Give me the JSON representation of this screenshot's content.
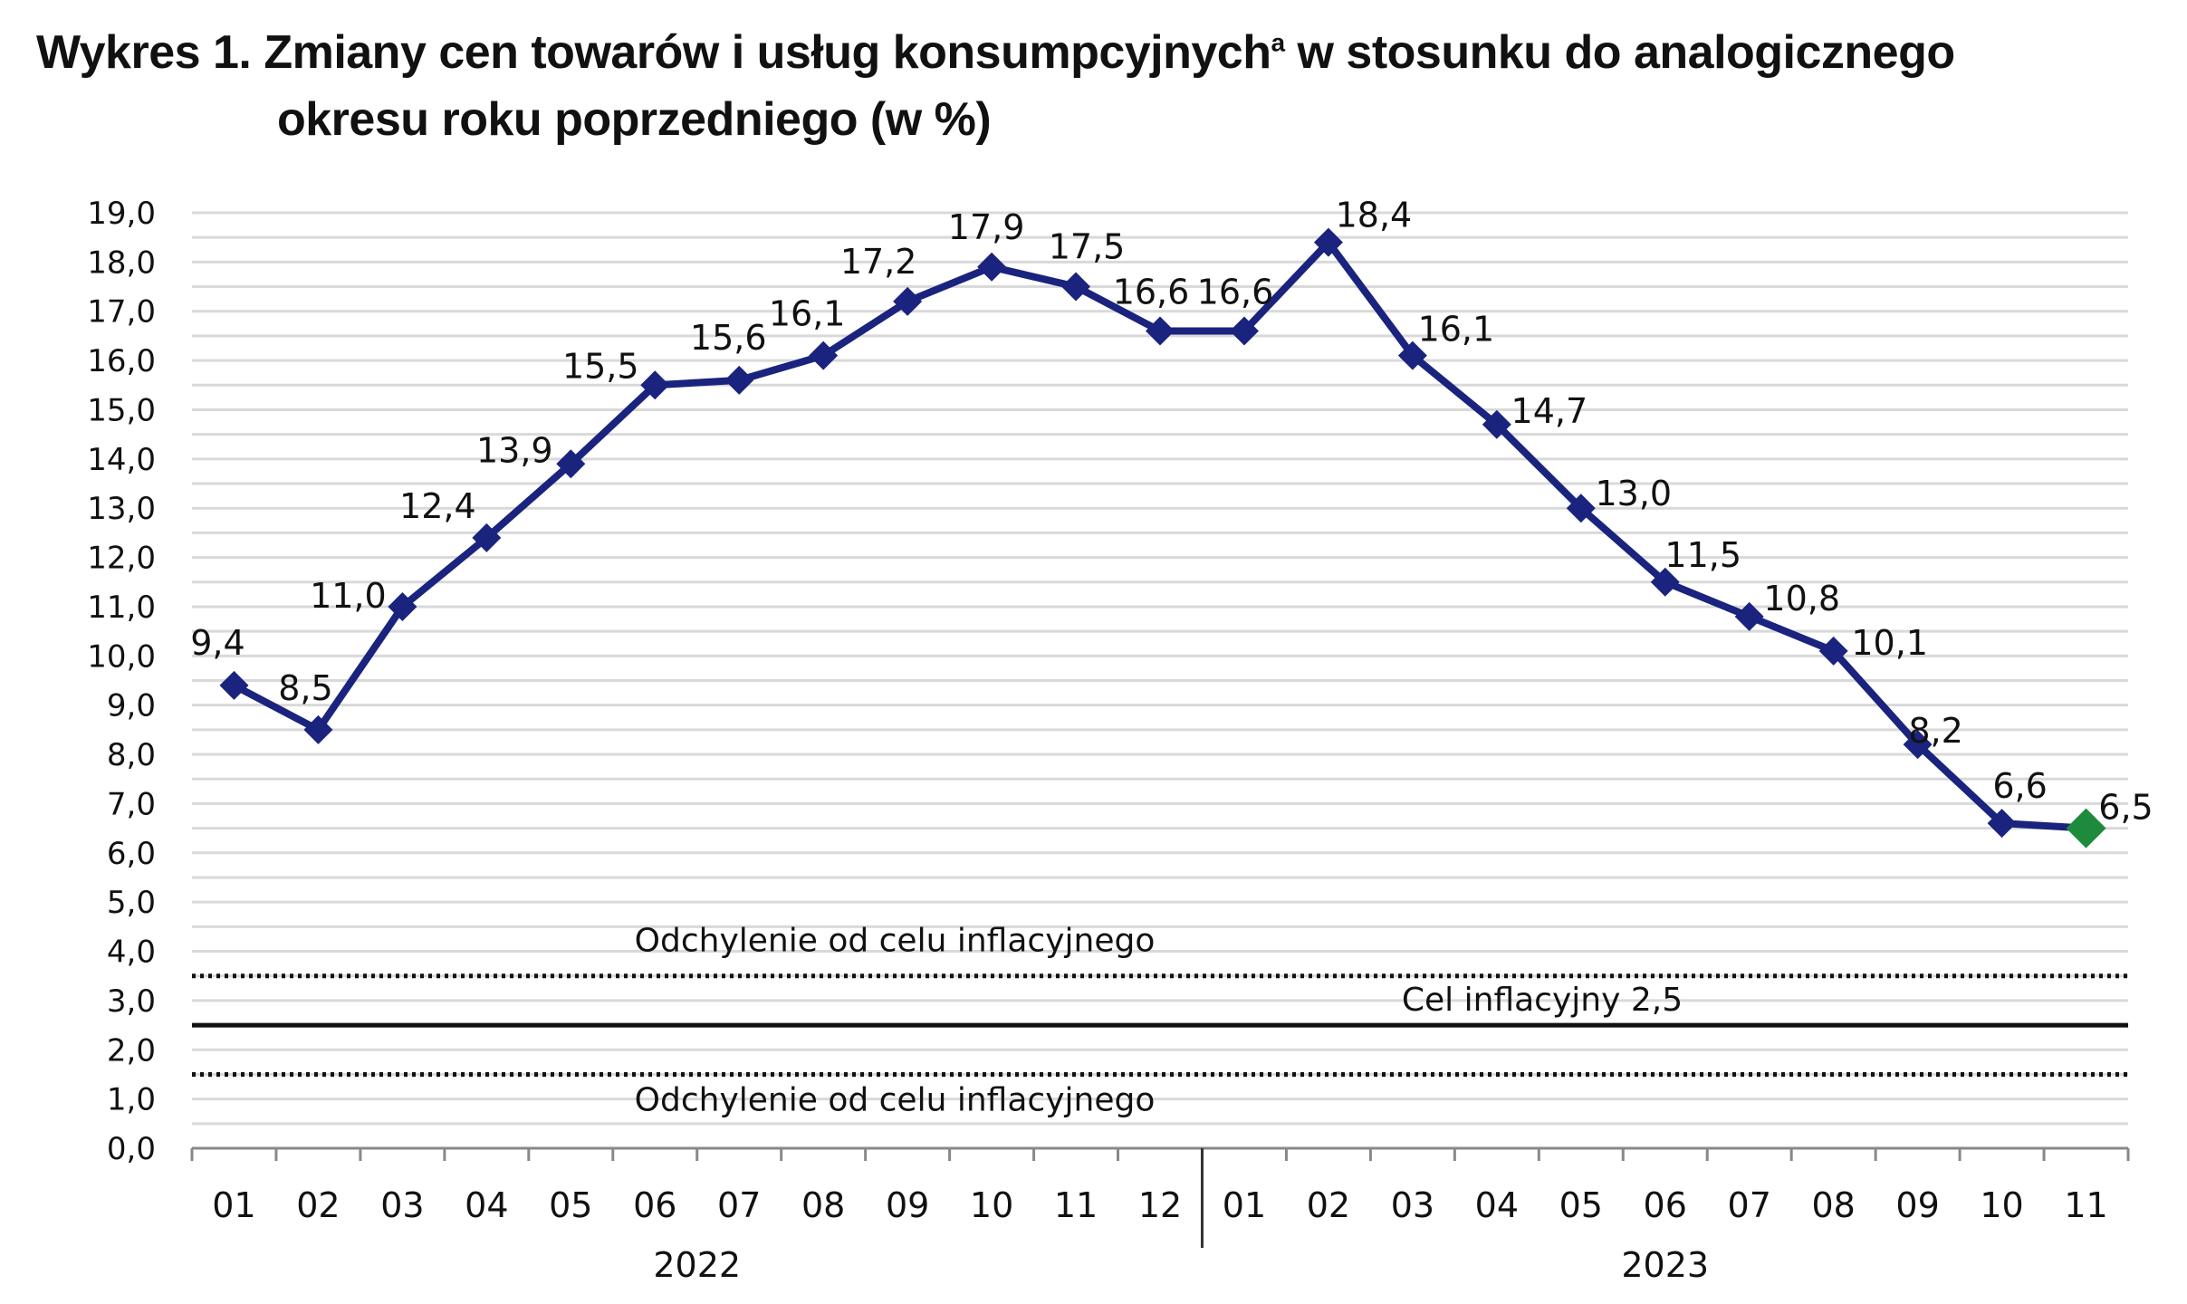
{
  "title": {
    "line1_main": "Wykres 1. Zmiany cen towarów i usług konsumpcyjnych",
    "line1_sup": "a",
    "line1_end": " w stosunku do analogicznego",
    "line2": "okresu roku poprzedniego (w %)"
  },
  "chart_data": {
    "type": "line",
    "title": "Wykres 1. Zmiany cen towarów i usług konsumpcyjnych w stosunku do analogicznego okresu roku poprzedniego (w %)",
    "categories": [
      "01",
      "02",
      "03",
      "04",
      "05",
      "06",
      "07",
      "08",
      "09",
      "10",
      "11",
      "12",
      "01",
      "02",
      "03",
      "04",
      "05",
      "06",
      "07",
      "08",
      "09",
      "10",
      "11"
    ],
    "year_groups": [
      {
        "label": "2022",
        "count": 12
      },
      {
        "label": "2023",
        "count": 11
      }
    ],
    "values": [
      9.4,
      8.5,
      11.0,
      12.4,
      13.9,
      15.5,
      15.6,
      16.1,
      17.2,
      17.9,
      17.5,
      16.6,
      16.6,
      18.4,
      16.1,
      14.7,
      13.0,
      11.5,
      10.8,
      10.1,
      8.2,
      6.6,
      6.5
    ],
    "data_labels": [
      "9,4",
      "8,5",
      "11,0",
      "12,4",
      "13,9",
      "15,5",
      "15,6",
      "16,1",
      "17,2",
      "17,9",
      "17,5",
      "16,6",
      "16,6",
      "18,4",
      "16,1",
      "14,7",
      "13,0",
      "11,5",
      "10,8",
      "10,1",
      "8,2",
      "6,6",
      "6,5"
    ],
    "y_ticks": [
      "0,0",
      "1,0",
      "2,0",
      "3,0",
      "4,0",
      "5,0",
      "6,0",
      "7,0",
      "8,0",
      "9,0",
      "10,0",
      "11,0",
      "12,0",
      "13,0",
      "14,0",
      "15,0",
      "16,0",
      "17,0",
      "18,0",
      "19,0"
    ],
    "ylim": [
      0,
      19
    ],
    "grid": true,
    "series_color": "#1a237e",
    "last_point_color": "#1e8a3c",
    "reference_lines": [
      {
        "value": 3.5,
        "style": "dotted",
        "label": "Odchylenie od celu inflacyjnego"
      },
      {
        "value": 2.5,
        "style": "solid",
        "label": "Cel inflacyjny 2,5"
      },
      {
        "value": 1.5,
        "style": "dotted",
        "label": "Odchylenie od celu inflacyjnego"
      }
    ]
  }
}
